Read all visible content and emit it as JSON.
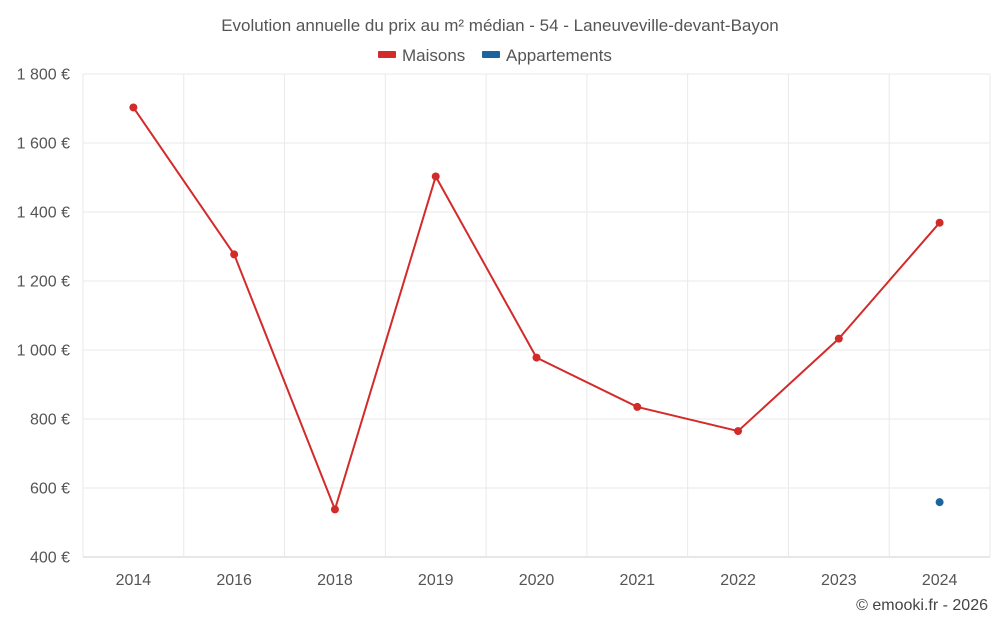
{
  "chart_data": {
    "type": "line",
    "title": "Evolution annuelle du prix au m² médian - 54 - Laneuveville-devant-Bayon",
    "categories": [
      "2014",
      "2016",
      "2018",
      "2019",
      "2020",
      "2021",
      "2022",
      "2023",
      "2024"
    ],
    "series": [
      {
        "name": "Maisons",
        "color": "#d32a2a",
        "values": [
          1703,
          1277,
          538,
          1503,
          978,
          835,
          765,
          1033,
          1369
        ]
      },
      {
        "name": "Appartements",
        "color": "#1a64a0",
        "values": [
          null,
          null,
          null,
          null,
          null,
          null,
          null,
          null,
          559
        ]
      }
    ],
    "ylim": [
      400,
      1800
    ],
    "yticks": [
      400,
      600,
      800,
      1000,
      1200,
      1400,
      1600,
      1800
    ],
    "ytick_labels": [
      "400 €",
      "600 €",
      "800 €",
      "1 000 €",
      "1 200 €",
      "1 400 €",
      "1 600 €",
      "1 800 €"
    ],
    "xlabel": "",
    "ylabel": "",
    "legend_position": "top-center",
    "grid": true
  },
  "credit": "© emooki.fr - 2026"
}
